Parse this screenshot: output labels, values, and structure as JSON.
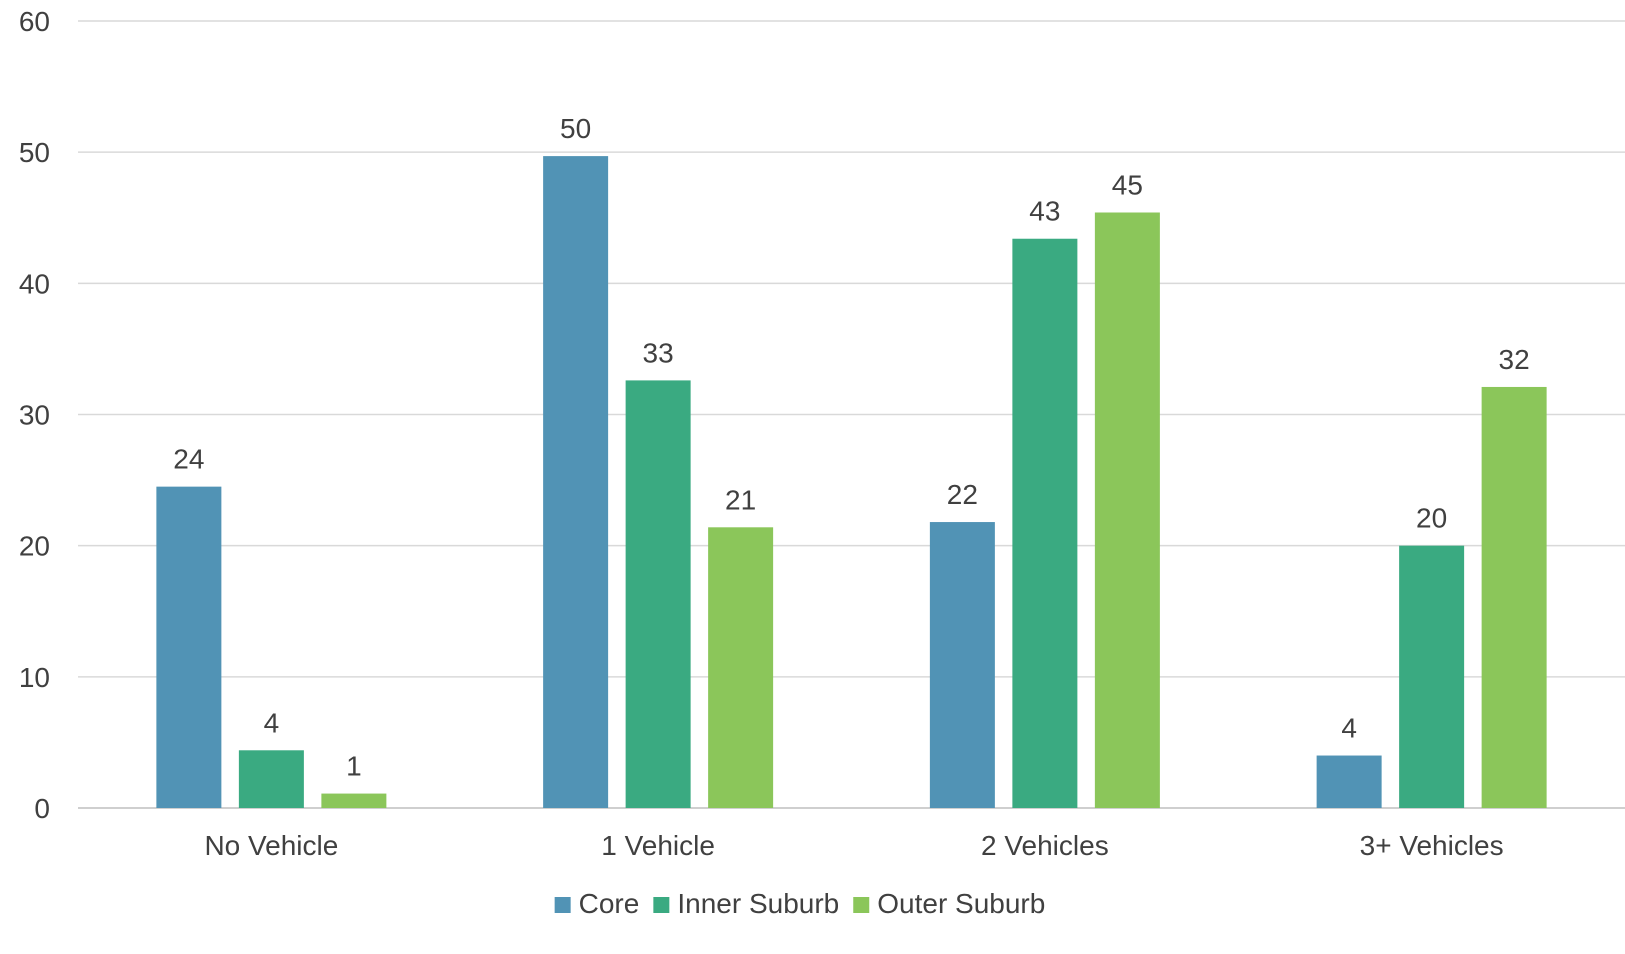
{
  "chart_data": {
    "type": "bar",
    "title": "",
    "xlabel": "",
    "ylabel": "",
    "ylim": [
      0,
      60
    ],
    "yticks": [
      0,
      10,
      20,
      30,
      40,
      50,
      60
    ],
    "grid": true,
    "legend_position": "bottom",
    "categories": [
      "No Vehicle",
      "1 Vehicle",
      "2 Vehicles",
      "3+ Vehicles"
    ],
    "series": [
      {
        "name": "Core",
        "color": "#5193B5",
        "values": [
          24.5,
          49.7,
          21.8,
          4.0
        ],
        "labels": [
          "24",
          "50",
          "22",
          "4"
        ]
      },
      {
        "name": "Inner Suburb",
        "color": "#3AAA81",
        "values": [
          4.4,
          32.6,
          43.4,
          20.0
        ],
        "labels": [
          "4",
          "33",
          "43",
          "20"
        ]
      },
      {
        "name": "Outer Suburb",
        "color": "#8BC65A",
        "values": [
          1.1,
          21.4,
          45.4,
          32.1
        ],
        "labels": [
          "1",
          "21",
          "45",
          "32"
        ]
      }
    ]
  }
}
